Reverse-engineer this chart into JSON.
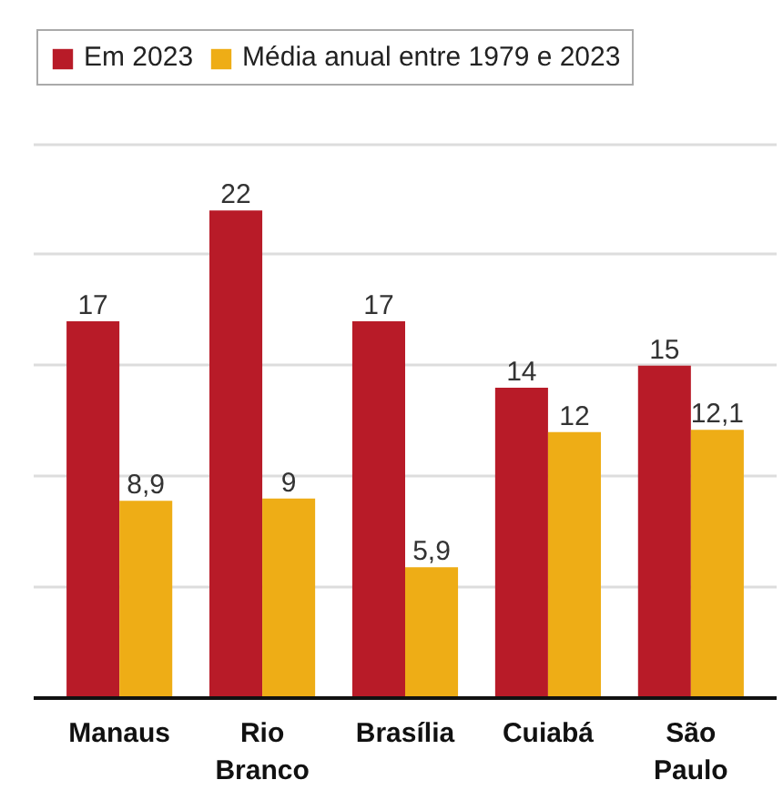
{
  "chart_data": {
    "type": "bar",
    "categories": [
      "Manaus",
      "Rio Branco",
      "Brasília",
      "Cuiabá",
      "São Paulo"
    ],
    "series": [
      {
        "name": "Em 2023",
        "color": "#b81b28",
        "values": [
          17,
          22,
          17,
          14,
          15
        ],
        "value_labels": [
          "17",
          "22",
          "17",
          "14",
          "15"
        ]
      },
      {
        "name": "Média anual entre 1979 e 2023",
        "color": "#eead16",
        "values": [
          8.9,
          9,
          5.9,
          12,
          12.1
        ],
        "value_labels": [
          "8,9",
          "9",
          "5,9",
          "12",
          "12,1"
        ]
      }
    ],
    "ylim": [
      0,
      30.3
    ],
    "yticks": [
      {
        "value": 5,
        "label": null
      },
      {
        "value": 10,
        "label": null
      },
      {
        "value": 15,
        "label": null
      },
      {
        "value": 20,
        "label": null
      },
      {
        "value": 25,
        "label": null
      }
    ],
    "tick_labels": "x",
    "grid": "y",
    "legend": "top left"
  }
}
